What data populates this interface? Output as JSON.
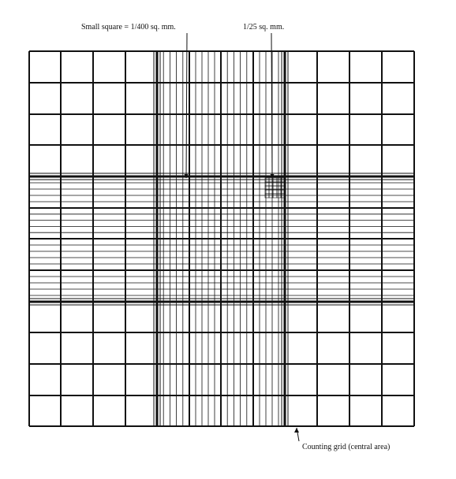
{
  "labels": {
    "small_square": "Small square = 1/400 sq. mm.",
    "medium_square": "1/25 sq. mm.",
    "counting_grid": "Counting grid (central area)"
  },
  "colors": {
    "line": "#111111",
    "background": "#ffffff"
  }
}
